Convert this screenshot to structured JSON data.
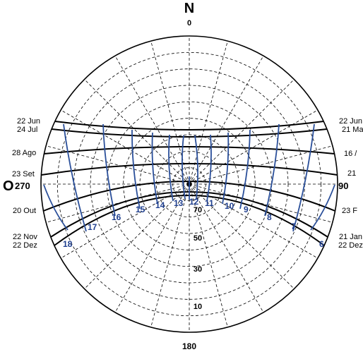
{
  "colors": {
    "grid": "#000000",
    "date_curve": "#000000",
    "hour_curve": "#2a4f9a",
    "hour_label": "#1f3f8f"
  },
  "compass": {
    "north_letter": "N",
    "north_deg": "0",
    "west_letter": "O",
    "west_deg": "270",
    "east_deg": "90",
    "south_deg": "180"
  },
  "altitude_labels": [
    "70",
    "50",
    "30",
    "10"
  ],
  "date_labels_left": [
    {
      "key": "jun",
      "text": "22 Jun"
    },
    {
      "key": "jul",
      "text": "24 Jul"
    },
    {
      "key": "ago",
      "text": "28 Ago"
    },
    {
      "key": "set",
      "text": "23 Set"
    },
    {
      "key": "out",
      "text": "20 Out"
    },
    {
      "key": "nov",
      "text": "22 Nov"
    },
    {
      "key": "dez",
      "text": "22 Dez"
    }
  ],
  "date_labels_right": [
    {
      "key": "jun",
      "text": "22 Jun"
    },
    {
      "key": "mai",
      "text": "21 Ma"
    },
    {
      "key": "abr",
      "text": "16 /"
    },
    {
      "key": "mar",
      "text": "21"
    },
    {
      "key": "fev",
      "text": "23 F"
    },
    {
      "key": "jan",
      "text": "21 Jan"
    },
    {
      "key": "dez",
      "text": "22 Dez"
    }
  ],
  "hour_labels": [
    "6",
    "7",
    "8",
    "9",
    "10",
    "11",
    "12",
    "13",
    "14",
    "15",
    "16",
    "17",
    "18"
  ]
}
